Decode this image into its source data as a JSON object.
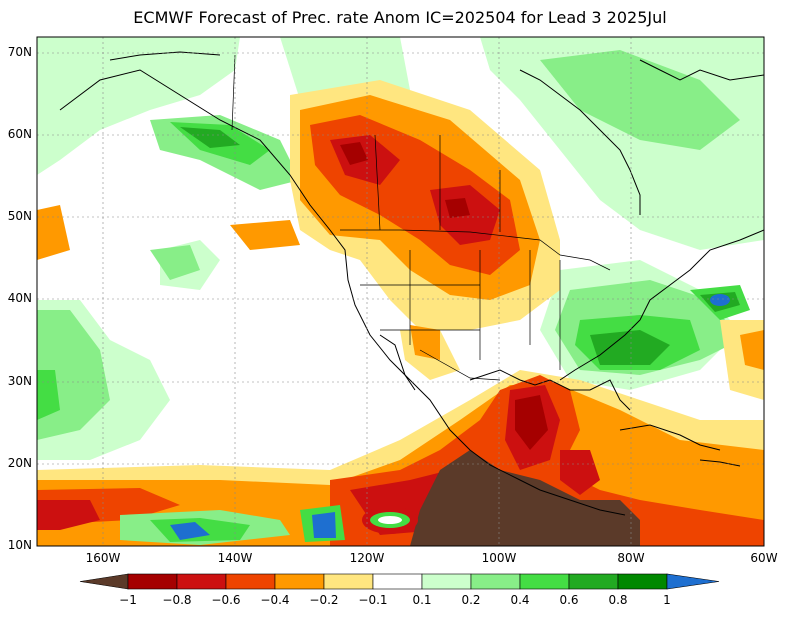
{
  "title": "ECMWF Forecast of Prec. rate Anom IC=202504 for Lead 3 2025Jul",
  "lat_labels": [
    "70N",
    "60N",
    "50N",
    "40N",
    "30N",
    "20N",
    "10N"
  ],
  "lon_labels": [
    "160W",
    "140W",
    "120W",
    "100W",
    "80W",
    "60W"
  ],
  "colorbar": {
    "tick_labels": [
      "−1",
      "−0.8",
      "−0.6",
      "−0.4",
      "−0.2",
      "−0.1",
      "0.1",
      "0.2",
      "0.4",
      "0.6",
      "0.8",
      "1"
    ],
    "colors": [
      "#5b3a29",
      "#a50000",
      "#cc1010",
      "#ee4400",
      "#ff9900",
      "#ffe680",
      "#ffffff",
      "#ccffcc",
      "#88ee88",
      "#44dd44",
      "#22aa22",
      "#008800",
      "#1e6fd0"
    ]
  },
  "palette": {
    "brown": "#5b3a29",
    "darkred": "#a50000",
    "red": "#cc1010",
    "orange_red": "#ee4400",
    "orange": "#ff9900",
    "yellow": "#ffe680",
    "light_green": "#ccffcc",
    "green1": "#88ee88",
    "green2": "#44dd44",
    "green3": "#22aa22",
    "dark_green": "#008800",
    "blue": "#1e6fd0"
  }
}
